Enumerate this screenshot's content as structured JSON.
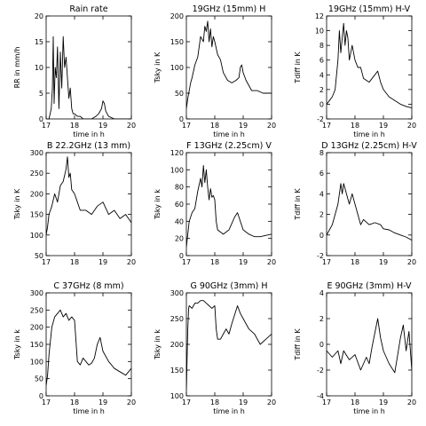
{
  "chart_data": [
    {
      "type": "line",
      "title": "Rain rate",
      "xlabel": "time in h",
      "ylabel": "RR in mm/h",
      "xlim": [
        17,
        20
      ],
      "ylim": [
        0,
        20
      ],
      "xticks": [
        17,
        18,
        19,
        20
      ],
      "yticks": [
        0,
        5,
        10,
        15,
        20
      ],
      "series": [
        {
          "x": [
            17.0,
            17.1,
            17.18,
            17.22,
            17.25,
            17.28,
            17.32,
            17.36,
            17.4,
            17.45,
            17.5,
            17.55,
            17.6,
            17.65,
            17.7,
            17.75,
            17.8,
            17.85,
            17.9,
            17.95,
            18.0,
            18.1,
            18.2,
            18.3,
            18.45,
            18.6,
            18.75,
            18.85,
            18.95,
            19.0,
            19.05,
            19.1,
            19.2,
            19.4,
            19.6,
            20.0
          ],
          "y": [
            0,
            0,
            2,
            6,
            16,
            3,
            10,
            8,
            14,
            2,
            13,
            6,
            16,
            10,
            12,
            8,
            4,
            6,
            2,
            1,
            1,
            0.5,
            0.5,
            0,
            0,
            0,
            0.5,
            1,
            2,
            3.5,
            3,
            1.5,
            0.5,
            0,
            0,
            0
          ]
        }
      ]
    },
    {
      "type": "line",
      "title": "19GHz (15mm) H",
      "xlabel": "time in h",
      "ylabel": "Tsky in K",
      "xlim": [
        17,
        20
      ],
      "ylim": [
        0,
        200
      ],
      "xticks": [
        17,
        18,
        19,
        20
      ],
      "yticks": [
        0,
        50,
        100,
        150,
        200
      ],
      "series": [
        {
          "x": [
            17.0,
            17.05,
            17.1,
            17.15,
            17.2,
            17.3,
            17.4,
            17.5,
            17.6,
            17.65,
            17.7,
            17.75,
            17.8,
            17.85,
            17.9,
            17.95,
            18.0,
            18.1,
            18.2,
            18.3,
            18.45,
            18.6,
            18.75,
            18.85,
            18.9,
            18.95,
            19.0,
            19.1,
            19.3,
            19.5,
            19.7,
            20.0
          ],
          "y": [
            20,
            40,
            55,
            70,
            80,
            105,
            120,
            160,
            150,
            180,
            170,
            190,
            150,
            175,
            140,
            160,
            150,
            125,
            115,
            90,
            75,
            70,
            75,
            80,
            100,
            105,
            90,
            75,
            55,
            55,
            50,
            50
          ]
        }
      ]
    },
    {
      "type": "line",
      "title": "19GHz (15mm) H-V",
      "xlabel": "time in h",
      "ylabel": "Tdiff in K",
      "xlim": [
        17,
        20
      ],
      "ylim": [
        -2,
        12
      ],
      "xticks": [
        17,
        18,
        19,
        20
      ],
      "yticks": [
        -2,
        0,
        2,
        4,
        6,
        8,
        10,
        12
      ],
      "series": [
        {
          "x": [
            17.0,
            17.1,
            17.2,
            17.3,
            17.35,
            17.4,
            17.45,
            17.5,
            17.55,
            17.6,
            17.65,
            17.7,
            17.75,
            17.8,
            17.9,
            18.0,
            18.1,
            18.2,
            18.3,
            18.5,
            18.6,
            18.7,
            18.8,
            18.9,
            19.0,
            19.2,
            19.4,
            19.6,
            19.8,
            20.0
          ],
          "y": [
            0,
            0.5,
            1,
            2,
            4,
            6,
            10,
            7,
            9,
            11,
            8,
            10,
            9,
            6,
            8,
            6,
            5,
            5,
            3.5,
            3,
            3.5,
            4,
            4.5,
            3,
            2,
            1,
            0.5,
            0,
            -0.3,
            -0.5
          ]
        }
      ]
    },
    {
      "type": "line",
      "title": "B 22.2GHz (13 mm)",
      "xlabel": "",
      "ylabel": "Tsky in K",
      "xlim": [
        17,
        20
      ],
      "ylim": [
        50,
        300
      ],
      "xticks": [
        17,
        18,
        19,
        20
      ],
      "yticks": [
        50,
        100,
        150,
        200,
        250,
        300
      ],
      "series": [
        {
          "x": [
            17.0,
            17.05,
            17.1,
            17.2,
            17.3,
            17.4,
            17.5,
            17.6,
            17.7,
            17.75,
            17.8,
            17.85,
            17.9,
            18.0,
            18.1,
            18.2,
            18.4,
            18.6,
            18.8,
            19.0,
            19.2,
            19.4,
            19.6,
            19.8,
            20.0
          ],
          "y": [
            100,
            120,
            150,
            170,
            200,
            180,
            220,
            230,
            260,
            290,
            240,
            250,
            210,
            200,
            180,
            160,
            160,
            150,
            170,
            180,
            150,
            160,
            140,
            150,
            130
          ]
        }
      ]
    },
    {
      "type": "line",
      "title": "F 13GHz (2.25cm) V",
      "xlabel": "",
      "ylabel": "Tsky in k",
      "xlim": [
        17,
        20
      ],
      "ylim": [
        0,
        120
      ],
      "xticks": [
        17,
        18,
        19,
        20
      ],
      "yticks": [
        0,
        20,
        40,
        60,
        80,
        100,
        120
      ],
      "series": [
        {
          "x": [
            17.0,
            17.05,
            17.1,
            17.2,
            17.3,
            17.4,
            17.5,
            17.55,
            17.6,
            17.65,
            17.7,
            17.75,
            17.8,
            17.85,
            17.9,
            17.95,
            18.0,
            18.05,
            18.1,
            18.3,
            18.5,
            18.7,
            18.8,
            18.9,
            19.0,
            19.2,
            19.4,
            19.6,
            20.0
          ],
          "y": [
            10,
            25,
            40,
            50,
            55,
            75,
            90,
            80,
            105,
            85,
            100,
            80,
            65,
            78,
            68,
            70,
            65,
            40,
            30,
            25,
            30,
            45,
            50,
            40,
            30,
            25,
            22,
            22,
            25
          ]
        }
      ]
    },
    {
      "type": "line",
      "title": "D 13GHz (2.25cm) H-V",
      "xlabel": "",
      "ylabel": "Tdiff in K",
      "xlim": [
        17,
        20
      ],
      "ylim": [
        -2,
        8
      ],
      "xticks": [
        17,
        18,
        19,
        20
      ],
      "yticks": [
        -2,
        0,
        2,
        4,
        6,
        8
      ],
      "series": [
        {
          "x": [
            17.0,
            17.1,
            17.2,
            17.3,
            17.4,
            17.5,
            17.55,
            17.6,
            17.7,
            17.8,
            17.9,
            18.0,
            18.1,
            18.2,
            18.3,
            18.5,
            18.7,
            18.9,
            19.0,
            19.2,
            19.4,
            19.6,
            19.8,
            20.0
          ],
          "y": [
            0,
            0.5,
            1,
            2,
            3,
            5,
            4,
            5,
            4,
            3,
            4,
            3,
            2,
            1,
            1.5,
            1,
            1.2,
            1,
            0.6,
            0.5,
            0.2,
            0,
            -0.2,
            -0.5
          ]
        }
      ]
    },
    {
      "type": "line",
      "title": "C 37GHz (8 mm)",
      "xlabel": "time in h",
      "ylabel": "Tsky in k",
      "xlim": [
        17,
        20
      ],
      "ylim": [
        0,
        300
      ],
      "xticks": [
        17,
        18,
        19,
        20
      ],
      "yticks": [
        0,
        50,
        100,
        150,
        200,
        250,
        300
      ],
      "series": [
        {
          "x": [
            17.0,
            17.05,
            17.1,
            17.2,
            17.3,
            17.4,
            17.5,
            17.6,
            17.7,
            17.8,
            17.9,
            18.0,
            18.1,
            18.2,
            18.3,
            18.4,
            18.5,
            18.6,
            18.7,
            18.8,
            18.9,
            19.0,
            19.2,
            19.4,
            19.6,
            19.8,
            20.0
          ],
          "y": [
            30,
            60,
            120,
            200,
            230,
            240,
            250,
            230,
            240,
            220,
            230,
            220,
            100,
            90,
            110,
            100,
            90,
            95,
            110,
            150,
            170,
            130,
            100,
            80,
            70,
            60,
            80
          ]
        }
      ]
    },
    {
      "type": "line",
      "title": "G 90GHz (3mm) H",
      "xlabel": "time in h",
      "ylabel": "Tsky in k",
      "xlim": [
        17,
        20
      ],
      "ylim": [
        100,
        300
      ],
      "xticks": [
        17,
        18,
        19,
        20
      ],
      "yticks": [
        100,
        150,
        200,
        250,
        300
      ],
      "series": [
        {
          "x": [
            17.0,
            17.02,
            17.05,
            17.08,
            17.1,
            17.2,
            17.3,
            17.4,
            17.5,
            17.6,
            17.7,
            17.8,
            17.9,
            18.0,
            18.05,
            18.1,
            18.2,
            18.3,
            18.4,
            18.5,
            18.6,
            18.8,
            18.9,
            19.0,
            19.2,
            19.4,
            19.6,
            19.8,
            20.0
          ],
          "y": [
            110,
            160,
            230,
            270,
            275,
            270,
            280,
            280,
            285,
            285,
            280,
            275,
            270,
            275,
            230,
            210,
            210,
            220,
            230,
            220,
            240,
            275,
            260,
            250,
            230,
            220,
            200,
            210,
            220
          ]
        }
      ]
    },
    {
      "type": "line",
      "title": "E 90GHz (3mm) H-V",
      "xlabel": "time in h",
      "ylabel": "Tdiff in K",
      "xlim": [
        17,
        20
      ],
      "ylim": [
        -4,
        4
      ],
      "xticks": [
        17,
        18,
        19,
        20
      ],
      "yticks": [
        -4,
        -2,
        0,
        2,
        4
      ],
      "series": [
        {
          "x": [
            17.0,
            17.2,
            17.4,
            17.5,
            17.6,
            17.8,
            18.0,
            18.2,
            18.4,
            18.5,
            18.6,
            18.8,
            18.9,
            19.0,
            19.2,
            19.4,
            19.6,
            19.7,
            19.8,
            19.9,
            20.0
          ],
          "y": [
            -0.5,
            -1,
            -0.5,
            -1.5,
            -0.5,
            -1.2,
            -0.8,
            -2,
            -1,
            -1.5,
            -0.2,
            2,
            0.5,
            -0.5,
            -1.5,
            -2.2,
            0.5,
            1.5,
            -0.5,
            1,
            -2
          ]
        }
      ]
    }
  ]
}
